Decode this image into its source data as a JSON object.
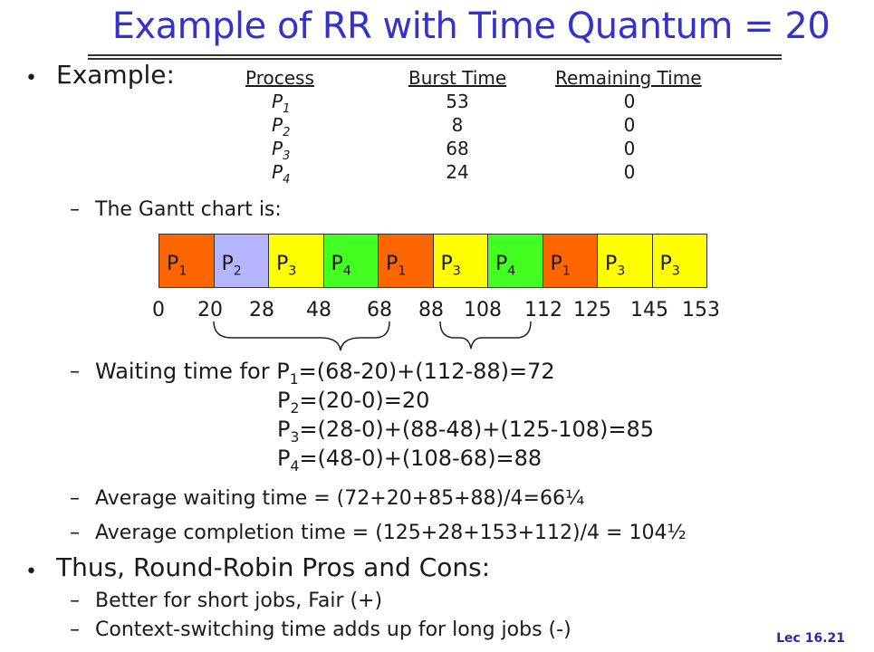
{
  "slide": {
    "title": "Example of RR with Time Quantum = 20",
    "example_label": "Example:",
    "table": {
      "headers": [
        "Process",
        "Burst Time",
        "Remaining Time"
      ],
      "rows": [
        {
          "process": "P",
          "sub": "1",
          "burst": "53",
          "remaining": "0"
        },
        {
          "process": "P",
          "sub": "2",
          "burst": "8",
          "remaining": "0"
        },
        {
          "process": "P",
          "sub": "3",
          "burst": "68",
          "remaining": "0"
        },
        {
          "process": "P",
          "sub": "4",
          "burst": "24",
          "remaining": "0"
        }
      ]
    },
    "gantt_intro": "The Gantt chart is:",
    "gantt": {
      "segments": [
        {
          "label": "P",
          "sub": "1",
          "start": 0,
          "end": 20,
          "color": "#ff6600"
        },
        {
          "label": "P",
          "sub": "2",
          "start": 20,
          "end": 28,
          "color": "#b4b4ff"
        },
        {
          "label": "P",
          "sub": "3",
          "start": 28,
          "end": 48,
          "color": "#ffff00"
        },
        {
          "label": "P",
          "sub": "4",
          "start": 48,
          "end": 68,
          "color": "#44ff22"
        },
        {
          "label": "P",
          "sub": "1",
          "start": 68,
          "end": 88,
          "color": "#ff6600"
        },
        {
          "label": "P",
          "sub": "3",
          "start": 88,
          "end": 108,
          "color": "#ffff00"
        },
        {
          "label": "P",
          "sub": "4",
          "start": 108,
          "end": 112,
          "color": "#44ff22"
        },
        {
          "label": "P",
          "sub": "1",
          "start": 112,
          "end": 125,
          "color": "#ff6600"
        },
        {
          "label": "P",
          "sub": "3",
          "start": 125,
          "end": 145,
          "color": "#ffff00"
        },
        {
          "label": "P",
          "sub": "3",
          "start": 145,
          "end": 153,
          "color": "#ffff00"
        }
      ],
      "ticks": [
        "0",
        "20",
        "28",
        "48",
        "68",
        "88",
        "108",
        "112",
        "125",
        "145",
        "153"
      ]
    },
    "waiting": {
      "intro": "Waiting time for ",
      "lines": [
        {
          "p": "P",
          "sub": "1",
          "expr": "=(68-20)+(112-88)=72"
        },
        {
          "p": "P",
          "sub": "2",
          "expr": "=(20-0)=20"
        },
        {
          "p": "P",
          "sub": "3",
          "expr": "=(28-0)+(88-48)+(125-108)=85"
        },
        {
          "p": "P",
          "sub": "4",
          "expr": "=(48-0)+(108-68)=88"
        }
      ]
    },
    "avg_waiting": "Average waiting time = (72+20+85+88)/4=66¼",
    "avg_completion": "Average completion time = (125+28+153+112)/4 = 104½",
    "pros_cons_title": "Thus, Round-Robin Pros and Cons:",
    "pros": "Better for short jobs, Fair (+)",
    "cons": "Context-switching time adds up for long jobs (-)",
    "footer": "Lec 16.21",
    "bullet_glyph": "•",
    "dash_glyph": "–"
  }
}
